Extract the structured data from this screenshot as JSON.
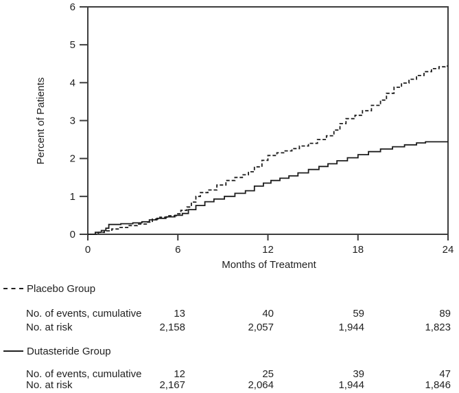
{
  "chart": {
    "xlabel": "Months of Treatment",
    "ylabel": "Percent of Patients"
  },
  "chart_data": {
    "type": "line",
    "subtype": "kaplan-meier-step",
    "title": "",
    "xlabel": "Months of Treatment",
    "ylabel": "Percent of Patients",
    "xlim": [
      0,
      24
    ],
    "ylim": [
      0,
      6
    ],
    "x_ticks": [
      0,
      6,
      12,
      18,
      24
    ],
    "y_ticks": [
      0,
      1,
      2,
      3,
      4,
      5,
      6
    ],
    "grid": false,
    "legend_position": "below-left",
    "series": [
      {
        "name": "Placebo Group",
        "style": "dashed",
        "points": [
          [
            0,
            0
          ],
          [
            0.7,
            0.05
          ],
          [
            1.1,
            0.09
          ],
          [
            1.6,
            0.14
          ],
          [
            2.1,
            0.18
          ],
          [
            2.7,
            0.23
          ],
          [
            3.3,
            0.27
          ],
          [
            3.9,
            0.32
          ],
          [
            4.3,
            0.4
          ],
          [
            4.8,
            0.45
          ],
          [
            5.4,
            0.49
          ],
          [
            5.9,
            0.54
          ],
          [
            6.2,
            0.63
          ],
          [
            6.6,
            0.72
          ],
          [
            6.9,
            0.85
          ],
          [
            7.2,
            1.0
          ],
          [
            7.5,
            1.1
          ],
          [
            8.0,
            1.17
          ],
          [
            8.6,
            1.3
          ],
          [
            9.2,
            1.42
          ],
          [
            9.8,
            1.5
          ],
          [
            10.3,
            1.57
          ],
          [
            10.7,
            1.65
          ],
          [
            11.1,
            1.78
          ],
          [
            11.6,
            1.95
          ],
          [
            12.0,
            2.08
          ],
          [
            12.6,
            2.15
          ],
          [
            13.1,
            2.2
          ],
          [
            13.6,
            2.26
          ],
          [
            14.1,
            2.33
          ],
          [
            14.7,
            2.4
          ],
          [
            15.3,
            2.5
          ],
          [
            15.9,
            2.6
          ],
          [
            16.4,
            2.75
          ],
          [
            16.8,
            2.92
          ],
          [
            17.2,
            3.05
          ],
          [
            17.8,
            3.14
          ],
          [
            18.3,
            3.26
          ],
          [
            18.9,
            3.4
          ],
          [
            19.5,
            3.54
          ],
          [
            19.9,
            3.72
          ],
          [
            20.4,
            3.88
          ],
          [
            20.9,
            3.99
          ],
          [
            21.4,
            4.09
          ],
          [
            21.9,
            4.19
          ],
          [
            22.4,
            4.29
          ],
          [
            22.9,
            4.37
          ],
          [
            23.4,
            4.42
          ],
          [
            23.8,
            4.44
          ],
          [
            24,
            4.44
          ]
        ]
      },
      {
        "name": "Dutasteride Group",
        "style": "solid",
        "points": [
          [
            0,
            0
          ],
          [
            0.5,
            0.05
          ],
          [
            0.9,
            0.1
          ],
          [
            1.2,
            0.16
          ],
          [
            1.4,
            0.26
          ],
          [
            2.2,
            0.28
          ],
          [
            3.0,
            0.3
          ],
          [
            3.6,
            0.33
          ],
          [
            4.1,
            0.38
          ],
          [
            4.6,
            0.42
          ],
          [
            5.2,
            0.46
          ],
          [
            5.8,
            0.5
          ],
          [
            6.3,
            0.55
          ],
          [
            6.7,
            0.65
          ],
          [
            7.2,
            0.76
          ],
          [
            7.8,
            0.86
          ],
          [
            8.4,
            0.93
          ],
          [
            9.1,
            1.0
          ],
          [
            9.8,
            1.08
          ],
          [
            10.5,
            1.15
          ],
          [
            11.1,
            1.27
          ],
          [
            11.7,
            1.35
          ],
          [
            12.2,
            1.42
          ],
          [
            12.8,
            1.48
          ],
          [
            13.4,
            1.54
          ],
          [
            14.0,
            1.62
          ],
          [
            14.7,
            1.71
          ],
          [
            15.4,
            1.79
          ],
          [
            16.0,
            1.86
          ],
          [
            16.6,
            1.94
          ],
          [
            17.3,
            2.02
          ],
          [
            18.0,
            2.1
          ],
          [
            18.7,
            2.18
          ],
          [
            19.5,
            2.25
          ],
          [
            20.3,
            2.31
          ],
          [
            21.1,
            2.36
          ],
          [
            21.9,
            2.41
          ],
          [
            22.5,
            2.44
          ],
          [
            24,
            2.44
          ]
        ]
      }
    ]
  },
  "legend_table": {
    "groups": [
      {
        "name": "Placebo Group",
        "marker": "dashed",
        "rows": [
          {
            "label": "No. of events, cumulative",
            "values": [
              "13",
              "40",
              "59",
              "89"
            ]
          },
          {
            "label": "No. at risk",
            "values": [
              "2,158",
              "2,057",
              "1,944",
              "1,823"
            ]
          }
        ]
      },
      {
        "name": "Dutasteride Group",
        "marker": "solid",
        "rows": [
          {
            "label": "No. of events, cumulative",
            "values": [
              "12",
              "25",
              "39",
              "47"
            ]
          },
          {
            "label": "No. at risk",
            "values": [
              "2,167",
              "2,064",
              "1,944",
              "1,846"
            ]
          }
        ]
      }
    ]
  },
  "colors": {
    "line": "#1c1c1c",
    "axis": "#3c3c3c",
    "text": "#1f1f1f",
    "background": "#ffffff"
  }
}
